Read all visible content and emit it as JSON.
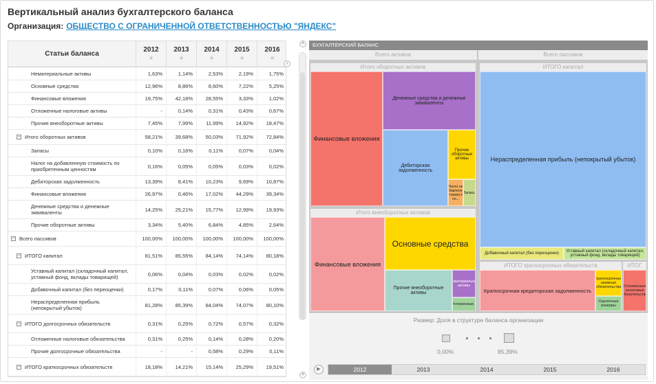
{
  "title": "Вертикальный анализ бухгалтерского баланса",
  "org": {
    "label": "Организация:",
    "name": "ОБЩЕСТВО С ОГРАНИЧЕННОЙ ОТВЕТСТВЕННОСТЬЮ \"ЯНДЕКС\""
  },
  "table": {
    "header_name": "Статьи баланса",
    "years": [
      "2012",
      "2013",
      "2014",
      "2015",
      "2016"
    ],
    "filter_icon": "≡",
    "rows": [
      {
        "label": "Нематериальные активы",
        "v": [
          "1,63%",
          "1,14%",
          "2,53%",
          "2,19%",
          "1,75%"
        ]
      },
      {
        "label": "Основные средства",
        "v": [
          "12,96%",
          "8,86%",
          "8,60%",
          "7,22%",
          "5,25%"
        ]
      },
      {
        "label": "Финансовые вложения",
        "v": [
          "19,75%",
          "42,18%",
          "28,55%",
          "3,33%",
          "1,02%"
        ]
      },
      {
        "label": "Отложенные налоговые активы",
        "v": [
          "-",
          "0,14%",
          "0,31%",
          "0,43%",
          "0,67%"
        ]
      },
      {
        "label": "Прочие внеоборотные активы",
        "v": [
          "7,45%",
          "7,99%",
          "11,99%",
          "14,92%",
          "18,47%"
        ]
      },
      {
        "label": "Итого оборотных активов",
        "v": [
          "58,21%",
          "39,68%",
          "50,03%",
          "71,92%",
          "72,84%"
        ]
      },
      {
        "label": "Запасы",
        "v": [
          "0,10%",
          "0,16%",
          "0,11%",
          "0,07%",
          "0,04%"
        ]
      },
      {
        "label": "Налог на добавленную стоимость по приобретенным ценностям",
        "v": [
          "0,16%",
          "0,05%",
          "0,05%",
          "0,03%",
          "0,02%"
        ]
      },
      {
        "label": "Дебиторская задолженность",
        "v": [
          "13,39%",
          "8,41%",
          "10,23%",
          "9,69%",
          "10,87%"
        ]
      },
      {
        "label": "Финансовые вложения",
        "v": [
          "26,97%",
          "0,46%",
          "17,02%",
          "44,29%",
          "39,34%"
        ]
      },
      {
        "label": "Денежные средства и денежные эквиваленты",
        "v": [
          "14,25%",
          "25,21%",
          "15,77%",
          "12,99%",
          "19,93%"
        ]
      },
      {
        "label": "Прочие оборотные активы",
        "v": [
          "3,34%",
          "5,40%",
          "6,84%",
          "4,85%",
          "2,64%"
        ]
      },
      {
        "label": "Всего пассивов",
        "v": [
          "100,00%",
          "100,00%",
          "100,00%",
          "100,00%",
          "100,00%"
        ]
      },
      {
        "label": "ИТОГО капитал",
        "v": [
          "81,51%",
          "85,55%",
          "84,14%",
          "74,14%",
          "80,18%"
        ]
      },
      {
        "label": "Уставный капитал (складочный капитал, уставный фонд, вклады товарищей)",
        "v": [
          "0,06%",
          "0,04%",
          "0,03%",
          "0,02%",
          "0,02%"
        ]
      },
      {
        "label": "Добавочный капитал (без переоценки)",
        "v": [
          "0,17%",
          "0,11%",
          "0,07%",
          "0,06%",
          "0,05%"
        ]
      },
      {
        "label": "Нераспределенная прибыль (непокрытый убыток)",
        "v": [
          "81,28%",
          "85,39%",
          "84,04%",
          "74,07%",
          "80,10%"
        ]
      },
      {
        "label": "ИТОГО долгосрочных обязательств",
        "v": [
          "0,31%",
          "0,25%",
          "0,72%",
          "0,57%",
          "0,32%"
        ]
      },
      {
        "label": "Отложенные налоговые обязательства",
        "v": [
          "0,31%",
          "0,25%",
          "0,14%",
          "0,28%",
          "0,20%"
        ]
      },
      {
        "label": "Прочие долгосрочные обязательства",
        "v": [
          "-",
          "-",
          "0,58%",
          "0,29%",
          "0,11%"
        ]
      },
      {
        "label": "ИТОГО краткосрочных обязательств",
        "v": [
          "18,18%",
          "14,21%",
          "15,14%",
          "25,29%",
          "19,51%"
        ]
      }
    ]
  },
  "treemap": {
    "header": "БУХГАЛТЕРСКИЙ БАЛАНС",
    "assets": "Всего активов",
    "liabilities": "Всего пассивов",
    "current_assets": "Итого оборотных активов",
    "noncurrent_assets": "Итого внеоборотных активов",
    "capital": "ИТОГО капитал",
    "short_term": "ИТОГО краткосрочных обязательств",
    "long_term": "ИТОГ",
    "leaves": {
      "fin_current": "Финансовые вложения",
      "cash": "Денежные средства и денежные эквиваленты",
      "receivables": "Дебиторская задолженность",
      "other_current": "Прочие оборотные активы",
      "vat": "Налог на добавленную стоимость по...",
      "inventory": "Запасы",
      "fin_noncurrent": "Финансовые вложения",
      "fixed": "Основные средства",
      "other_noncurrent": "Прочие внеоборотные активы",
      "intangible": "Нематериальные активы",
      "deferred_tax_assets": "Отложенные...",
      "retained": "Нераспределенная прибыль (непокрытый убыток)",
      "additional": "Добавочный капитал (без переоценки)",
      "charter": "Уставный капитал (складочный капитал, уставный фонд, вклады товарищей)",
      "payables": "Краткосрочная кредиторская задолженность",
      "borrowings": "Краткосрочные заемные обязательства",
      "reserves": "Оценочные резервы",
      "deferred_tax_liab": "Отложенные налоговые обязательства"
    },
    "colors": {
      "red": "#f4736a",
      "purple": "#a870c8",
      "blue": "#8fbdf2",
      "yellow": "#ffd700",
      "pink": "#f59a9c",
      "teal": "#a9d6cc",
      "green": "#9fd39b"
    }
  },
  "legend": {
    "title": "Размер: Доля в структуре баланса организации",
    "min": "0,00%",
    "max": "85,39%"
  },
  "timeline": {
    "years": [
      "2012",
      "2013",
      "2014",
      "2015",
      "2016"
    ],
    "selected": "2012"
  }
}
